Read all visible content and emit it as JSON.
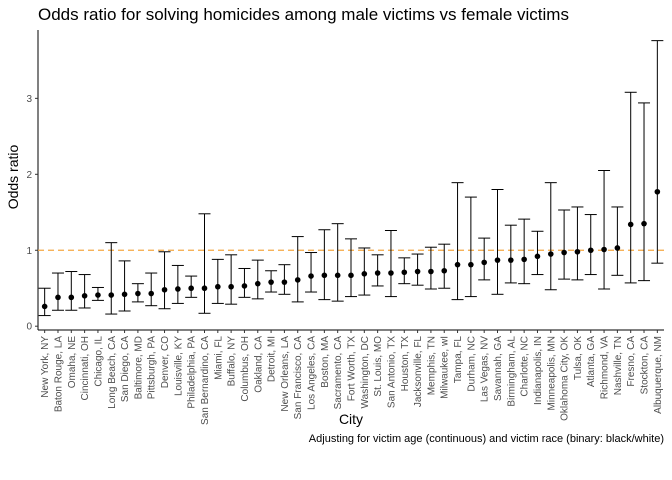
{
  "chart_data": {
    "type": "scatter",
    "title": "Odds ratio for solving homicides among male victims vs female victims",
    "xlabel": "City",
    "ylabel": "Odds ratio",
    "caption": "Adjusting for victim age (continuous) and victim race (binary: black/white)",
    "ylim": [
      -0.05,
      3.9
    ],
    "yticks": [
      0,
      1,
      2,
      3
    ],
    "grid": false,
    "reference_line": {
      "y": 1,
      "style": "dashed",
      "color": "#f5a742"
    },
    "point_color": "#000000",
    "categories": [
      "New York, NY",
      "Baton Rouge, LA",
      "Omaha, NE",
      "Cincinnati, OH",
      "Chicago, IL",
      "Long Beach, CA",
      "San Diego, CA",
      "Baltimore, MD",
      "Pittsburgh, PA",
      "Denver, CO",
      "Louisville, KY",
      "Philadelphia, PA",
      "San Bernardino, CA",
      "Miami, FL",
      "Buffalo, NY",
      "Columbus, OH",
      "Oakland, CA",
      "Detroit, MI",
      "New Orleans, LA",
      "San Francisco, CA",
      "Los Angeles, CA",
      "Boston, MA",
      "Sacramento, CA",
      "Fort Worth, TX",
      "Washington, DC",
      "St. Louis, MO",
      "San Antonio, TX",
      "Houston, TX",
      "Jacksonville, FL",
      "Memphis, TN",
      "Milwaukee, wI",
      "Tampa, FL",
      "Durham, NC",
      "Las Vegas, NV",
      "Savannah, GA",
      "Birmingham, AL",
      "Charlotte, NC",
      "Indianapolis, IN",
      "Minneapolis, MN",
      "Oklahoma City, OK",
      "Tulsa, OK",
      "Atlanta, GA",
      "Richmond, VA",
      "Nashville, TN",
      "Fresno, CA",
      "Stockton, CA",
      "Albuquerque, NM"
    ],
    "values": [
      0.26,
      0.38,
      0.38,
      0.4,
      0.41,
      0.41,
      0.42,
      0.43,
      0.43,
      0.48,
      0.49,
      0.5,
      0.5,
      0.52,
      0.52,
      0.53,
      0.56,
      0.58,
      0.58,
      0.61,
      0.66,
      0.67,
      0.67,
      0.67,
      0.69,
      0.7,
      0.7,
      0.71,
      0.72,
      0.72,
      0.73,
      0.81,
      0.81,
      0.84,
      0.87,
      0.87,
      0.88,
      0.92,
      0.95,
      0.97,
      0.98,
      1.0,
      1.01,
      1.03,
      1.34,
      1.35,
      1.77
    ],
    "ci_low": [
      0.14,
      0.21,
      0.21,
      0.24,
      0.34,
      0.16,
      0.2,
      0.32,
      0.27,
      0.23,
      0.3,
      0.38,
      0.17,
      0.3,
      0.29,
      0.38,
      0.36,
      0.45,
      0.42,
      0.32,
      0.45,
      0.35,
      0.33,
      0.39,
      0.41,
      0.53,
      0.39,
      0.56,
      0.54,
      0.49,
      0.5,
      0.35,
      0.39,
      0.61,
      0.42,
      0.57,
      0.56,
      0.68,
      0.48,
      0.62,
      0.61,
      0.68,
      0.49,
      0.67,
      0.57,
      0.6,
      0.83
    ],
    "ci_high": [
      0.5,
      0.7,
      0.72,
      0.68,
      0.51,
      1.1,
      0.86,
      0.56,
      0.7,
      0.98,
      0.8,
      0.66,
      1.48,
      0.88,
      0.94,
      0.76,
      0.87,
      0.73,
      0.81,
      1.18,
      0.97,
      1.27,
      1.35,
      1.15,
      1.03,
      0.94,
      1.26,
      0.9,
      0.95,
      1.04,
      1.08,
      1.89,
      1.7,
      1.16,
      1.8,
      1.33,
      1.41,
      1.25,
      1.89,
      1.53,
      1.57,
      1.47,
      2.05,
      1.57,
      3.08,
      2.94,
      3.76
    ]
  }
}
